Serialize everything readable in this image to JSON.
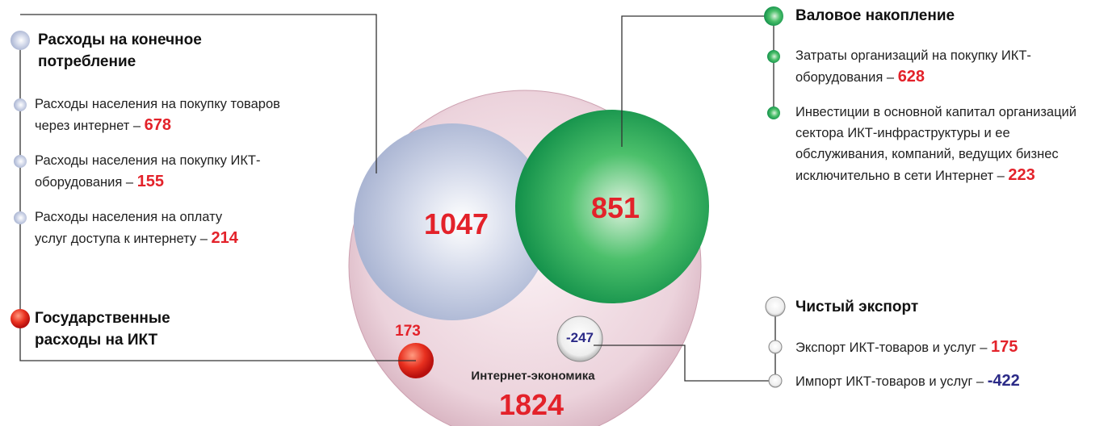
{
  "consumption": {
    "title": "Расходы на конечное потребление",
    "total": 1047,
    "items": [
      {
        "label": "Расходы населения на покупку товаров через интернет –",
        "value": 678
      },
      {
        "label": "Расходы населения на покупку ИКТ-оборудования –",
        "value": 155
      },
      {
        "label": "Расходы населения на оплату услуг доступа к интернету –",
        "value": 214
      }
    ]
  },
  "government": {
    "title": "Государственные расходы на ИКТ",
    "total": 173
  },
  "investment": {
    "title": "Валовое накопление",
    "total": 851,
    "items": [
      {
        "label": "Затраты организаций на покупку ИКТ-оборудования –",
        "value": 628
      },
      {
        "label": "Инвестиции в основной капитал организаций сектора ИКТ-инфраструктуры и ее обслуживания, компаний, ведущих бизнес исключительно в сети Интернет –",
        "value": 223
      }
    ]
  },
  "net_export": {
    "title": "Чистый экспорт",
    "total": -247,
    "items": [
      {
        "label": "Экспорт ИКТ-товаров и услуг –",
        "value": 175
      },
      {
        "label": "Импорт ИКТ-товаров и услуг –",
        "value": -422
      }
    ]
  },
  "economy": {
    "label": "Интернет-экономика",
    "total": 1824
  }
}
